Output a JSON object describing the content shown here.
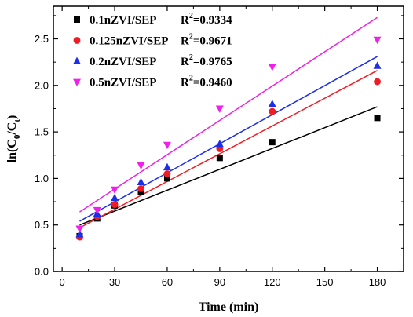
{
  "chart_data": {
    "type": "scatter",
    "title": "",
    "xlabel": "Time (min)",
    "ylabel_parts": [
      "ln(C",
      "0",
      "/C",
      "t",
      ")"
    ],
    "xlim": [
      -5,
      195
    ],
    "ylim": [
      0.0,
      2.85
    ],
    "xticks": [
      0,
      30,
      60,
      90,
      120,
      150,
      180
    ],
    "yticks": [
      0.0,
      0.5,
      1.0,
      1.5,
      2.0,
      2.5
    ],
    "legend_position": "top-left",
    "grid": false,
    "series": [
      {
        "name": "0.1nZVI/SEP",
        "r2_label": "R",
        "r2_sup": "2",
        "r2_value": "=0.9334",
        "marker": "square",
        "color": "#000000",
        "x": [
          10,
          20,
          30,
          45,
          60,
          90,
          120,
          180
        ],
        "y": [
          0.38,
          0.57,
          0.71,
          0.86,
          1.0,
          1.22,
          1.39,
          1.65
        ],
        "fit": {
          "x": [
            10,
            180
          ],
          "y": [
            0.5,
            1.77
          ]
        }
      },
      {
        "name": "0.125nZVI/SEP",
        "r2_label": "R",
        "r2_sup": "2",
        "r2_value": "=0.9671",
        "marker": "circle",
        "color": "#ee1c24",
        "x": [
          10,
          20,
          30,
          45,
          60,
          90,
          120,
          180
        ],
        "y": [
          0.37,
          0.59,
          0.72,
          0.89,
          1.05,
          1.32,
          1.72,
          2.04
        ],
        "fit": {
          "x": [
            10,
            180
          ],
          "y": [
            0.47,
            2.16
          ]
        }
      },
      {
        "name": "0.2nZVI/SEP",
        "r2_label": "R",
        "r2_sup": "2",
        "r2_value": "=0.9765",
        "marker": "triangle-up",
        "color": "#1c2fe8",
        "x": [
          10,
          20,
          30,
          45,
          60,
          90,
          120,
          180
        ],
        "y": [
          0.4,
          0.62,
          0.79,
          0.96,
          1.12,
          1.37,
          1.8,
          2.21
        ],
        "fit": {
          "x": [
            10,
            180
          ],
          "y": [
            0.54,
            2.31
          ]
        }
      },
      {
        "name": "0.5nZVI/SEP",
        "r2_label": "R",
        "r2_sup": "2",
        "r2_value": "=0.9460",
        "marker": "triangle-down",
        "color": "#f020e8",
        "x": [
          10,
          20,
          30,
          45,
          60,
          90,
          120,
          180
        ],
        "y": [
          0.46,
          0.66,
          0.88,
          1.14,
          1.36,
          1.75,
          2.2,
          2.49
        ],
        "fit": {
          "x": [
            10,
            180
          ],
          "y": [
            0.64,
            2.73
          ]
        }
      }
    ]
  }
}
